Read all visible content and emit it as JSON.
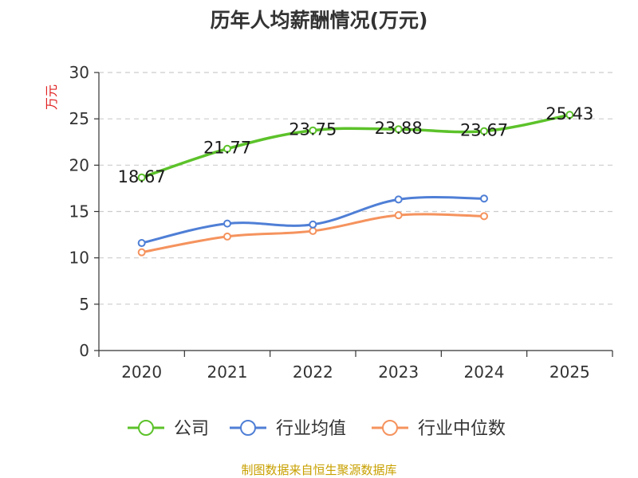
{
  "chart_data": {
    "type": "line",
    "title": "历年人均薪酬情况(万元)",
    "ylabel": "万元",
    "xlabel": "",
    "categories": [
      "2020",
      "2021",
      "2022",
      "2023",
      "2024",
      "2025"
    ],
    "ylim": [
      0,
      30
    ],
    "yticks": [
      "0",
      "5",
      "10",
      "15",
      "20",
      "25",
      "30"
    ],
    "grid": true,
    "legend_position": "bottom",
    "series": [
      {
        "name": "公司",
        "color": "#5cc22a",
        "show_labels": true,
        "values": [
          18.67,
          21.77,
          23.75,
          23.88,
          23.67,
          25.43
        ]
      },
      {
        "name": "行业均值",
        "color": "#4f7fd6",
        "show_labels": false,
        "values": [
          11.6,
          13.7,
          13.6,
          16.3,
          16.4,
          null
        ]
      },
      {
        "name": "行业中位数",
        "color": "#f5935e",
        "show_labels": false,
        "values": [
          10.6,
          12.3,
          12.9,
          14.6,
          14.5,
          null
        ]
      }
    ],
    "data_labels": [
      "18.67",
      "21.77",
      "23.75",
      "23.88",
      "23.67",
      "25.43"
    ]
  },
  "footer": {
    "source": "制图数据来自恒生聚源数据库"
  }
}
